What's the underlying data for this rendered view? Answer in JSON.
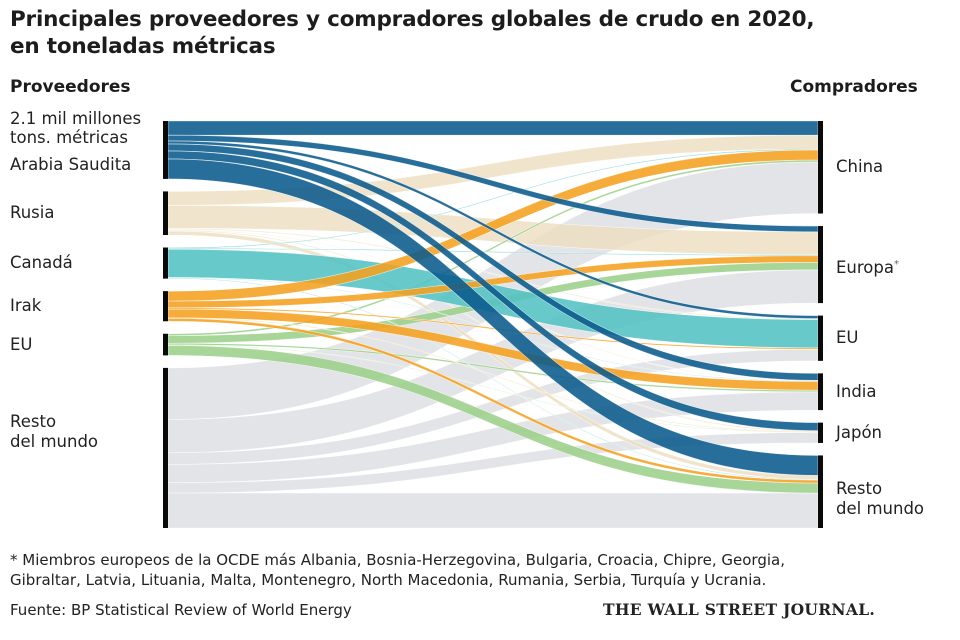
{
  "title_lines": [
    "Principales proveedores y compradores globales de crudo en 2020,",
    "en toneladas métricas"
  ],
  "headers": {
    "suppliers": "Proveedores",
    "buyers": "Compradores"
  },
  "scale_note": [
    "2.1 mil millones",
    "tons. métricas"
  ],
  "footnote_lines": [
    "* Miembros europeos de la OCDE más Albania, Bosnia-Herzegovina, Bulgaria, Croacia, Chipre, Georgia,",
    "Gibraltar, Latvia, Lituania, Malta, Montenegro, North Macedonia, Rumania, Serbia, Turquía y Ucrania."
  ],
  "source_text": "Fuente: BP Statistical Review of World Energy",
  "brand": "THE WALL STREET JOURNAL.",
  "colors": {
    "Arabia Saudita": "#0a5a8c",
    "Rusia": "#ecdfbf",
    "Canadá": "#52c2c3",
    "Irak": "#f5a11f",
    "EU": "#9ccf8a",
    "Resto del mundo": "#dedfe3",
    "node_bar": "#0a0a0a"
  },
  "chart_data": {
    "type": "sankey",
    "title": "Principales proveedores y compradores globales de crudo en 2020, en toneladas métricas",
    "units": "millones de toneladas métricas (estimado)",
    "scale_reference": "2.1 mil millones tons. métricas",
    "sources": [
      {
        "name": "Arabia Saudita",
        "label": "Arabia Saudita"
      },
      {
        "name": "Rusia",
        "label": "Rusia"
      },
      {
        "name": "Canadá",
        "label": "Canadá"
      },
      {
        "name": "Irak",
        "label": "Irak"
      },
      {
        "name": "EU",
        "label": "EU"
      },
      {
        "name": "Resto del mundo",
        "label": "Resto del mundo"
      }
    ],
    "targets": [
      {
        "name": "China",
        "label": "China"
      },
      {
        "name": "Europa",
        "label": "Europa",
        "note": "*"
      },
      {
        "name": "EU",
        "label": "EU"
      },
      {
        "name": "India",
        "label": "India"
      },
      {
        "name": "Japón",
        "label": "Japón"
      },
      {
        "name": "Resto del mundo",
        "label": "Resto del mundo"
      }
    ],
    "flows": [
      {
        "source": "Arabia Saudita",
        "target": "China",
        "value": 85
      },
      {
        "source": "Arabia Saudita",
        "target": "Europa",
        "value": 35
      },
      {
        "source": "Arabia Saudita",
        "target": "EU",
        "value": 18
      },
      {
        "source": "Arabia Saudita",
        "target": "India",
        "value": 42
      },
      {
        "source": "Arabia Saudita",
        "target": "Japón",
        "value": 48
      },
      {
        "source": "Arabia Saudita",
        "target": "Resto del mundo",
        "value": 120
      },
      {
        "source": "Rusia",
        "target": "China",
        "value": 84
      },
      {
        "source": "Rusia",
        "target": "Europa",
        "value": 138
      },
      {
        "source": "Rusia",
        "target": "EU",
        "value": 6
      },
      {
        "source": "Rusia",
        "target": "India",
        "value": 4
      },
      {
        "source": "Rusia",
        "target": "Japón",
        "value": 6
      },
      {
        "source": "Rusia",
        "target": "Resto del mundo",
        "value": 24
      },
      {
        "source": "Canadá",
        "target": "China",
        "value": 5
      },
      {
        "source": "Canadá",
        "target": "Europa",
        "value": 5
      },
      {
        "source": "Canadá",
        "target": "EU",
        "value": 170
      },
      {
        "source": "Canadá",
        "target": "India",
        "value": 3
      },
      {
        "source": "Canadá",
        "target": "Resto del mundo",
        "value": 4
      },
      {
        "source": "Irak",
        "target": "China",
        "value": 60
      },
      {
        "source": "Irak",
        "target": "Europa",
        "value": 40
      },
      {
        "source": "Irak",
        "target": "EU",
        "value": 8
      },
      {
        "source": "Irak",
        "target": "India",
        "value": 52
      },
      {
        "source": "Irak",
        "target": "Japón",
        "value": 3
      },
      {
        "source": "Irak",
        "target": "Resto del mundo",
        "value": 18
      },
      {
        "source": "EU",
        "target": "China",
        "value": 12
      },
      {
        "source": "EU",
        "target": "Europa",
        "value": 45
      },
      {
        "source": "EU",
        "target": "India",
        "value": 10
      },
      {
        "source": "EU",
        "target": "Japón",
        "value": 3
      },
      {
        "source": "EU",
        "target": "Resto del mundo",
        "value": 60
      },
      {
        "source": "Resto del mundo",
        "target": "China",
        "value": 310
      },
      {
        "source": "Resto del mundo",
        "target": "Europa",
        "value": 200
      },
      {
        "source": "Resto del mundo",
        "target": "EU",
        "value": 70
      },
      {
        "source": "Resto del mundo",
        "target": "India",
        "value": 110
      },
      {
        "source": "Resto del mundo",
        "target": "Japón",
        "value": 62
      },
      {
        "source": "Resto del mundo",
        "target": "Resto del mundo",
        "value": 210
      }
    ]
  }
}
